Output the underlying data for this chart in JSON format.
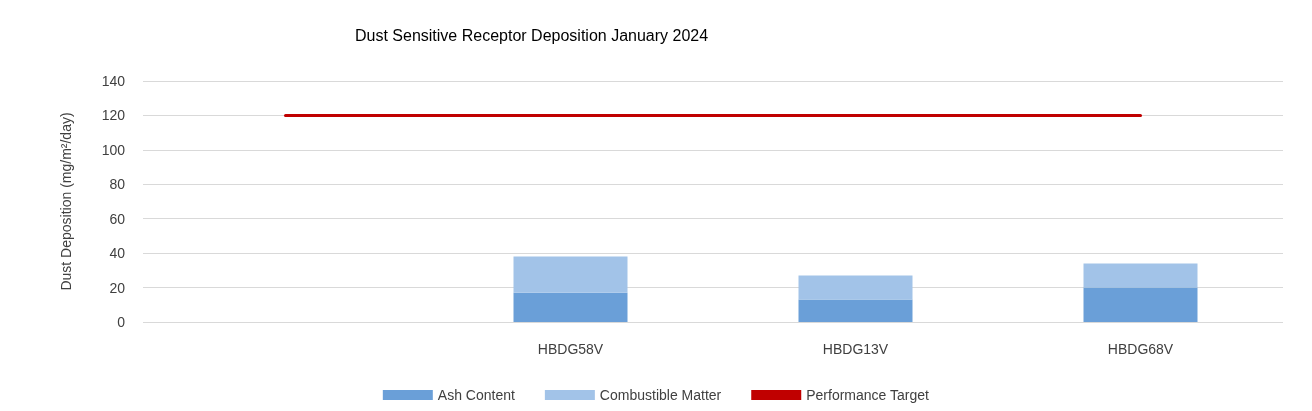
{
  "chart_data": {
    "type": "bar",
    "title": "Dust Sensitive Receptor Deposition January 2024",
    "ylabel": "Dust Deposition (mg/m²/day)",
    "categories": [
      null,
      "HBDG58V",
      "HBDG13V",
      "HBDG68V"
    ],
    "series": [
      {
        "name": "Ash Content",
        "color": "#6a9fd8",
        "values": [
          null,
          17,
          13,
          20
        ]
      },
      {
        "name": "Combustible Matter",
        "color": "#a2c3e8",
        "values": [
          null,
          21,
          14,
          14
        ]
      },
      {
        "name": "Performance Target",
        "type": "line",
        "color": "#c00000",
        "values": [
          120,
          120,
          120,
          120
        ]
      }
    ],
    "stacked": true,
    "ylim": [
      0,
      140
    ],
    "yticks": [
      0,
      20,
      40,
      60,
      80,
      100,
      120,
      140
    ],
    "grid": "y",
    "legend": "bottom",
    "marker": "none"
  }
}
